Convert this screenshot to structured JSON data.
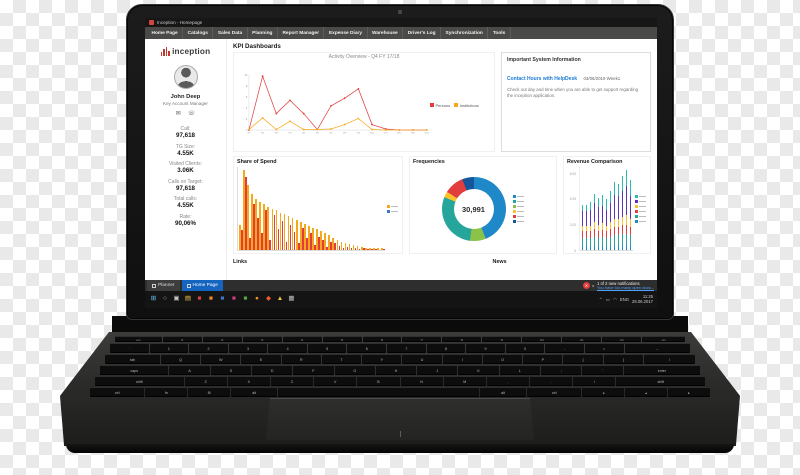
{
  "window": {
    "title": "Inception - Homepage"
  },
  "menu": {
    "items": [
      "Home Page",
      "Catalogs",
      "Sales Data",
      "Planning",
      "Report Manager",
      "Expense Diary",
      "Warehouse",
      "Driver's Log",
      "Synchronization",
      "Tools"
    ]
  },
  "sidebar": {
    "brand": "inception",
    "user": {
      "name": "John Deep",
      "role": "Key Account Manager"
    },
    "contact_icons": [
      {
        "name": "mail-icon",
        "glyph": "✉"
      },
      {
        "name": "phone-icon",
        "glyph": "☏"
      }
    ],
    "stats": [
      {
        "label": "Call:",
        "value": "97,618"
      },
      {
        "label": "TG Size:",
        "value": "4.55K"
      },
      {
        "label": "Visited Clients:",
        "value": "3.06K"
      },
      {
        "label": "Calls on Target:",
        "value": "97,618"
      },
      {
        "label": "Total calls:",
        "value": "4.55K"
      },
      {
        "label": "Rate:",
        "value": "90,06%"
      }
    ]
  },
  "main": {
    "header": "KPI Dashboards",
    "links_title": "Links",
    "news_title": "News"
  },
  "info_panel": {
    "title": "Important System Information",
    "link": "Contact Hours with HelpDesk",
    "date": "03/06/2019 Week1",
    "body": "Check out day and time when you are able to get support regarding the inception application."
  },
  "charts": {
    "line": {
      "title": "Activity Overview - Q4 FY 17/18",
      "ymax": 10,
      "yticks": [
        0,
        2,
        4,
        6,
        8,
        10
      ],
      "xlabels": [
        "W1",
        "W2",
        "W3",
        "W4",
        "W5",
        "W6",
        "W7",
        "W8",
        "W9",
        "W10",
        "W11",
        "W12",
        "W13",
        "W14"
      ],
      "series": [
        {
          "name": "Persons",
          "color": "#e23d3d",
          "values": [
            0,
            9.8,
            3,
            5.4,
            3,
            0.1,
            4.4,
            5.8,
            7.5,
            1,
            0.2,
            0,
            0,
            0
          ]
        },
        {
          "name": "Institutions",
          "color": "#f6a81c",
          "values": [
            0.1,
            2.2,
            0.1,
            1.6,
            0.1,
            0.1,
            0.2,
            1,
            2.1,
            0.1,
            0,
            0,
            0,
            0
          ]
        }
      ]
    },
    "share": {
      "title": "Share of Spend",
      "ymax": 100,
      "series": [
        {
          "name": "spend-primary",
          "color": "#f6a81c",
          "values": [
            30,
            97,
            78,
            68,
            62,
            58,
            55,
            52,
            50,
            48,
            45,
            43,
            41,
            38,
            36,
            34,
            31,
            29,
            27,
            25,
            23,
            21,
            18,
            15,
            12,
            10,
            8,
            7,
            6,
            5,
            4,
            3,
            3,
            2,
            2,
            2
          ]
        },
        {
          "name": "spend-secondary",
          "color": "#e23d3d",
          "values": [
            24,
            88,
            15,
            55,
            38,
            20,
            48,
            12,
            42,
            25,
            35,
            10,
            30,
            22,
            8,
            26,
            14,
            20,
            6,
            16,
            12,
            4,
            10,
            8,
            5,
            3,
            4,
            2,
            3,
            1,
            2,
            1,
            1,
            1,
            0,
            1
          ]
        }
      ],
      "legend_colors": [
        "#f6a81c",
        "#3b78c9"
      ]
    },
    "donut": {
      "title": "Frequencies",
      "center_value": "30,991",
      "segments": [
        {
          "color": "#1e88c9",
          "pct": 44
        },
        {
          "color": "#8bc34a",
          "pct": 8
        },
        {
          "color": "#26a69a",
          "pct": 29
        },
        {
          "color": "#fbc02d",
          "pct": 3
        },
        {
          "color": "#e23d3d",
          "pct": 10
        },
        {
          "color": "#15559c",
          "pct": 6
        }
      ],
      "legend_colors": [
        "#1e88c9",
        "#26a69a",
        "#8bc34a",
        "#fbc02d",
        "#e23d3d",
        "#15559c"
      ]
    },
    "revenue": {
      "title": "Revenue Comparison",
      "ymax": 62,
      "yticks": [
        "0",
        "2,00",
        "4,00",
        "6,00"
      ],
      "stack_colors": [
        "#1e88c9",
        "#26a69a",
        "#e23d3d",
        "#fbc02d",
        "#5e35b1",
        "#2bbbad"
      ],
      "bars": [
        [
          3,
          6,
          5,
          4,
          11,
          5
        ],
        [
          3,
          6,
          5,
          4,
          11,
          5
        ],
        [
          3,
          6,
          5,
          4,
          12,
          6
        ],
        [
          3,
          7,
          6,
          5,
          14,
          7
        ],
        [
          3,
          6,
          5,
          5,
          13,
          7
        ],
        [
          3,
          7,
          5,
          5,
          13,
          8
        ],
        [
          3,
          6,
          5,
          4,
          12,
          8
        ],
        [
          3,
          7,
          6,
          5,
          14,
          9
        ],
        [
          4,
          7,
          6,
          6,
          18,
          10
        ],
        [
          4,
          7,
          6,
          6,
          17,
          9
        ],
        [
          4,
          8,
          7,
          6,
          19,
          11
        ],
        [
          4,
          8,
          7,
          7,
          22,
          12
        ],
        [
          4,
          7,
          6,
          6,
          17,
          12
        ]
      ],
      "legend_colors": [
        "#2bbbad",
        "#5e35b1",
        "#fbc02d",
        "#e23d3d",
        "#26a69a",
        "#1e88c9"
      ]
    }
  },
  "tabs": {
    "inactive": "Planner",
    "active": "Home Page"
  },
  "taskbar": {
    "icons": [
      {
        "name": "start",
        "glyph": "⊞",
        "color": "#6fc3f7"
      },
      {
        "name": "search",
        "glyph": "○",
        "color": "#cccccc"
      },
      {
        "name": "task-view",
        "glyph": "▣",
        "color": "#c5c5c5"
      },
      {
        "name": "file-explorer",
        "glyph": "▤",
        "color": "#f3c54a"
      },
      {
        "name": "app-red",
        "glyph": "■",
        "color": "#e04343"
      },
      {
        "name": "app-orange",
        "glyph": "■",
        "color": "#f08b2d"
      },
      {
        "name": "app-blue",
        "glyph": "■",
        "color": "#3b78c9"
      },
      {
        "name": "app-magenta",
        "glyph": "■",
        "color": "#d23a83"
      },
      {
        "name": "app-green",
        "glyph": "■",
        "color": "#56a845"
      },
      {
        "name": "browser",
        "glyph": "●",
        "color": "#f08b2d"
      },
      {
        "name": "active-app",
        "glyph": "◆",
        "color": "#f05a2d"
      },
      {
        "name": "warning",
        "glyph": "▲",
        "color": "#f3c54a"
      },
      {
        "name": "photos",
        "glyph": "▦",
        "color": "#bbbbbb"
      }
    ],
    "notification_text": "1 of 2 new notifications",
    "notification_link": "You have too many open docs...",
    "tray_glyphs": [
      "⌃",
      "▭",
      "◠"
    ],
    "tray": {
      "lang": "ENG",
      "time": "11:25",
      "date": "28.06.2017"
    }
  },
  "keyboard": {
    "rows": [
      [
        "esc",
        "f1",
        "f2",
        "f3",
        "f4",
        "f5",
        "f6",
        "f7",
        "f8",
        "f9",
        "f10",
        "f11",
        "f12",
        "del"
      ],
      [
        "`",
        "1",
        "2",
        "3",
        "4",
        "5",
        "6",
        "7",
        "8",
        "9",
        "0",
        "-",
        "=",
        "←"
      ],
      [
        "tab",
        "Q",
        "W",
        "E",
        "R",
        "T",
        "Y",
        "U",
        "I",
        "O",
        "P",
        "[",
        "]",
        "\\"
      ],
      [
        "caps",
        "A",
        "S",
        "D",
        "F",
        "G",
        "H",
        "J",
        "K",
        "L",
        ";",
        "'",
        "enter"
      ],
      [
        "shift",
        "Z",
        "X",
        "C",
        "V",
        "B",
        "N",
        "M",
        ",",
        ".",
        "/",
        "shift"
      ],
      [
        "ctrl",
        "fn",
        "⊞",
        "alt",
        "",
        "alt",
        "ctrl",
        "◂",
        "▴",
        "▸"
      ]
    ]
  },
  "colors": {
    "brand_red": "#c0392b",
    "accent_red": "#e23d3d",
    "accent_orange": "#f6a81c",
    "accent_blue": "#1e88c9",
    "accent_teal": "#26a69a",
    "accent_purple": "#5e35b1",
    "accent_green": "#8bc34a",
    "accent_yellow": "#fbc02d",
    "tab_blue": "#1565c0",
    "link_blue": "#1a7ad4"
  }
}
